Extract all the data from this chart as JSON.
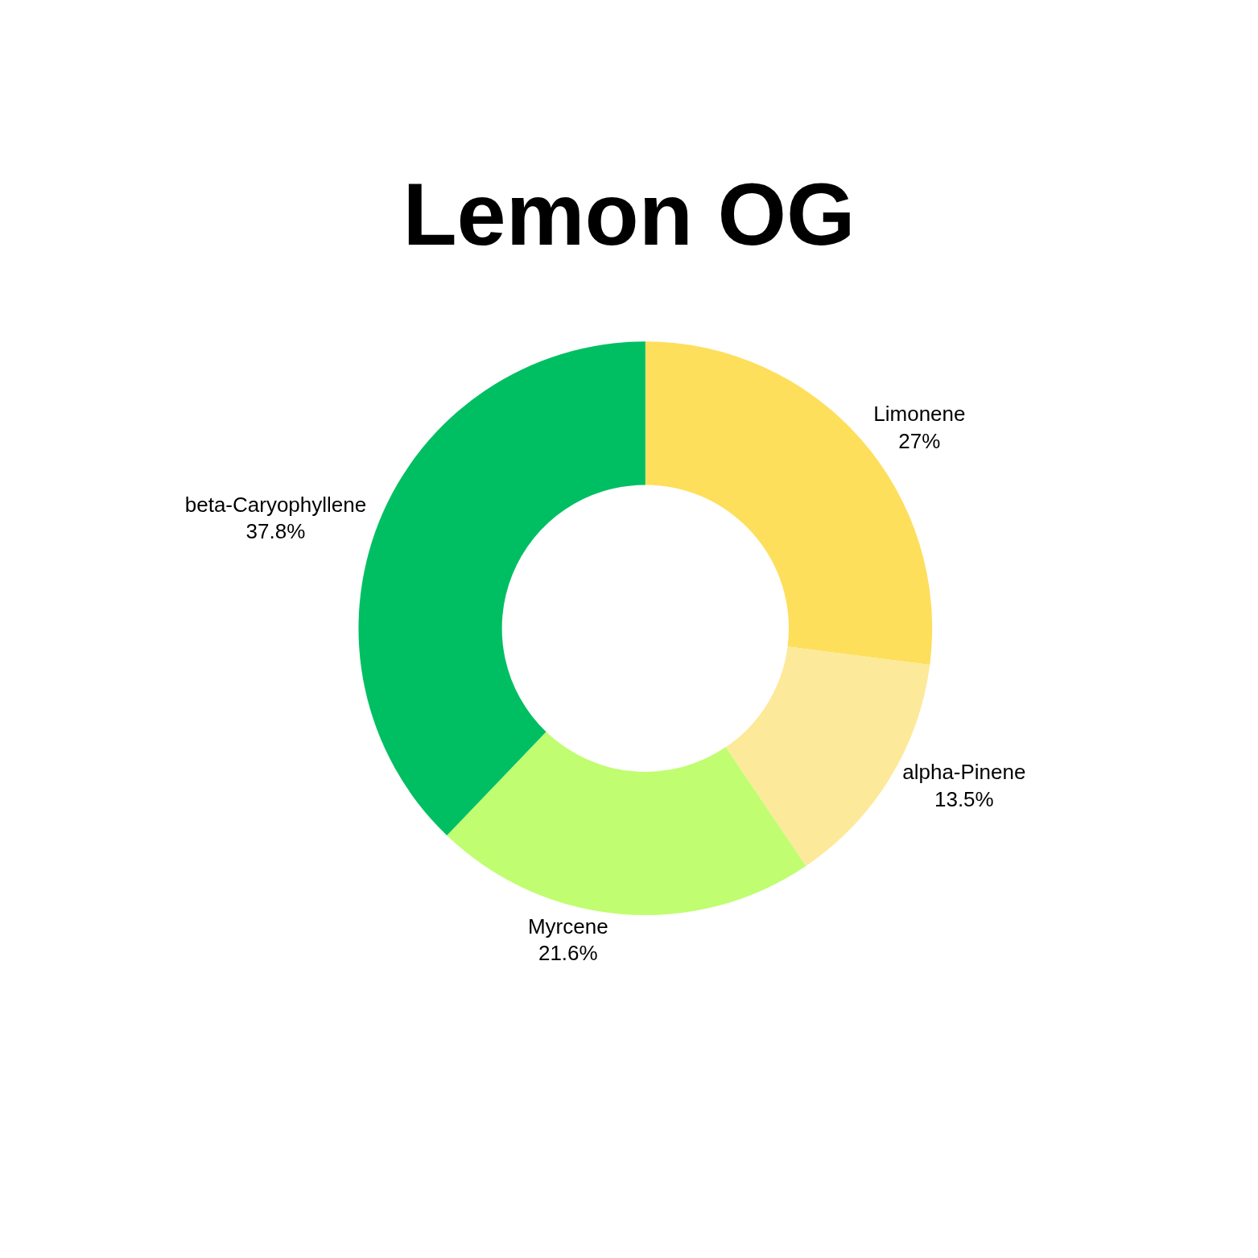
{
  "chart_data": {
    "type": "donut",
    "title": "Lemon OG",
    "categories": [
      "Limonene",
      "alpha-Pinene",
      "Myrcene",
      "beta-Caryophyllene"
    ],
    "values": [
      27,
      13.5,
      21.6,
      37.8
    ],
    "value_labels": [
      "27%",
      "13.5%",
      "21.6%",
      "37.8%"
    ],
    "colors": [
      "#fddf5c",
      "#fde99a",
      "#c0fd70",
      "#00bf63"
    ],
    "legend": false
  }
}
